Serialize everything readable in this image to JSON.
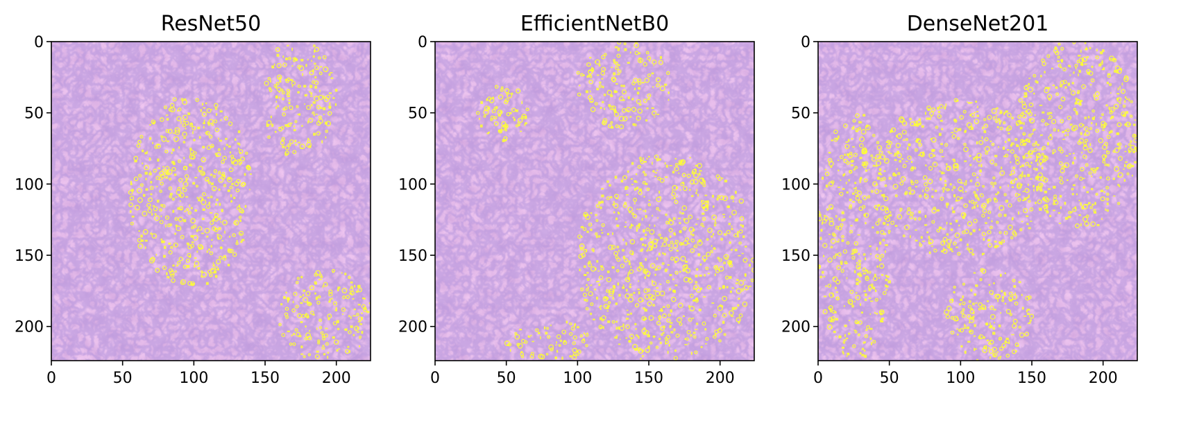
{
  "chart_data": [
    {
      "type": "heatmap",
      "title": "ResNet50",
      "xlabel": "",
      "ylabel": "",
      "xlim": [
        0,
        224
      ],
      "ylim": [
        224,
        0
      ],
      "xticks": [
        0,
        50,
        100,
        150,
        200
      ],
      "yticks": [
        0,
        50,
        100,
        150,
        200
      ],
      "grid": false,
      "background": "H&E stained tissue (pink/purple)",
      "overlay_color": "#ffff33",
      "highlighted_regions": [
        {
          "x": [
            55,
            140
          ],
          "y": [
            40,
            170
          ]
        },
        {
          "x": [
            145,
            200
          ],
          "y": [
            0,
            80
          ]
        },
        {
          "x": [
            160,
            224
          ],
          "y": [
            160,
            224
          ]
        }
      ]
    },
    {
      "type": "heatmap",
      "title": "EfficientNetB0",
      "xlabel": "",
      "ylabel": "",
      "xlim": [
        0,
        224
      ],
      "ylim": [
        224,
        0
      ],
      "xticks": [
        0,
        50,
        100,
        150,
        200
      ],
      "yticks": [
        0,
        50,
        100,
        150,
        200
      ],
      "grid": false,
      "background": "H&E stained tissue (pink/purple)",
      "overlay_color": "#ffff33",
      "highlighted_regions": [
        {
          "x": [
            30,
            65
          ],
          "y": [
            30,
            70
          ]
        },
        {
          "x": [
            100,
            165
          ],
          "y": [
            0,
            60
          ]
        },
        {
          "x": [
            100,
            224
          ],
          "y": [
            80,
            224
          ]
        },
        {
          "x": [
            50,
            110
          ],
          "y": [
            195,
            224
          ]
        }
      ]
    },
    {
      "type": "heatmap",
      "title": "DenseNet201",
      "xlabel": "",
      "ylabel": "",
      "xlim": [
        0,
        224
      ],
      "ylim": [
        224,
        0
      ],
      "xticks": [
        0,
        50,
        100,
        150,
        200
      ],
      "yticks": [
        0,
        50,
        100,
        150,
        200
      ],
      "grid": false,
      "background": "H&E stained tissue (pink/purple)",
      "overlay_color": "#ffff33",
      "highlighted_regions": [
        {
          "x": [
            0,
            50
          ],
          "y": [
            50,
            224
          ]
        },
        {
          "x": [
            40,
            160
          ],
          "y": [
            40,
            150
          ]
        },
        {
          "x": [
            140,
            224
          ],
          "y": [
            0,
            130
          ]
        },
        {
          "x": [
            90,
            150
          ],
          "y": [
            160,
            224
          ]
        }
      ]
    }
  ]
}
